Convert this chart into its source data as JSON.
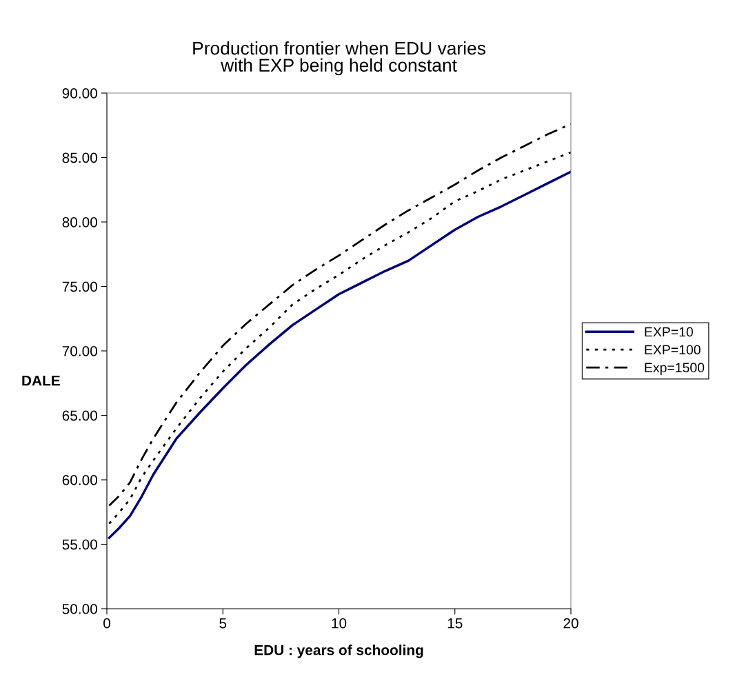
{
  "chart_data": {
    "type": "line",
    "title": "Production frontier when EDU varies\nwith EXP being held constant",
    "xlabel": "EDU : years of schooling",
    "ylabel": "DALE",
    "x": [
      0.1,
      0.5,
      1,
      1.5,
      2,
      3,
      4,
      5,
      6,
      7,
      8,
      9,
      10,
      11,
      12,
      13,
      14,
      15,
      16,
      17,
      18,
      19,
      20
    ],
    "series": [
      {
        "name": "EXP=10",
        "color": "#000080",
        "line_style": "solid",
        "values": [
          55.5,
          56.2,
          57.2,
          58.7,
          60.4,
          63.2,
          65.2,
          67.1,
          68.9,
          70.5,
          72.0,
          73.2,
          74.4,
          75.3,
          76.2,
          77.0,
          78.2,
          79.4,
          80.4,
          81.2,
          82.1,
          83.0,
          83.9
        ]
      },
      {
        "name": "EXP=100",
        "color": "#000000",
        "line_style": "dotted",
        "values": [
          56.6,
          57.4,
          58.5,
          60.2,
          61.5,
          64.0,
          66.3,
          68.4,
          70.2,
          71.8,
          73.6,
          74.8,
          75.9,
          77.1,
          78.2,
          79.2,
          80.3,
          81.6,
          82.4,
          83.3,
          84.0,
          84.7,
          85.4
        ]
      },
      {
        "name": "Exp=1500",
        "color": "#000000",
        "line_style": "dashdot",
        "values": [
          58.0,
          58.7,
          59.8,
          61.6,
          63.2,
          66.0,
          68.3,
          70.4,
          72.1,
          73.6,
          75.1,
          76.3,
          77.4,
          78.6,
          79.8,
          80.9,
          81.9,
          82.9,
          84.0,
          85.0,
          85.9,
          86.8,
          87.6
        ]
      }
    ],
    "xlim": [
      0,
      20
    ],
    "xticks": [
      0,
      5,
      10,
      15,
      20
    ],
    "ylim": [
      50,
      90
    ],
    "yticks": [
      {
        "value": 50,
        "label": "50.00"
      },
      {
        "value": 55,
        "label": "55.00"
      },
      {
        "value": 60,
        "label": "60.00"
      },
      {
        "value": 65,
        "label": "65.00"
      },
      {
        "value": 70,
        "label": "70.00"
      },
      {
        "value": 75,
        "label": "75.00"
      },
      {
        "value": 80,
        "label": "80.00"
      },
      {
        "value": 85,
        "label": "85.00"
      },
      {
        "value": 90,
        "label": "90.00"
      }
    ],
    "grid": false,
    "legend": "right",
    "marker": "none"
  }
}
